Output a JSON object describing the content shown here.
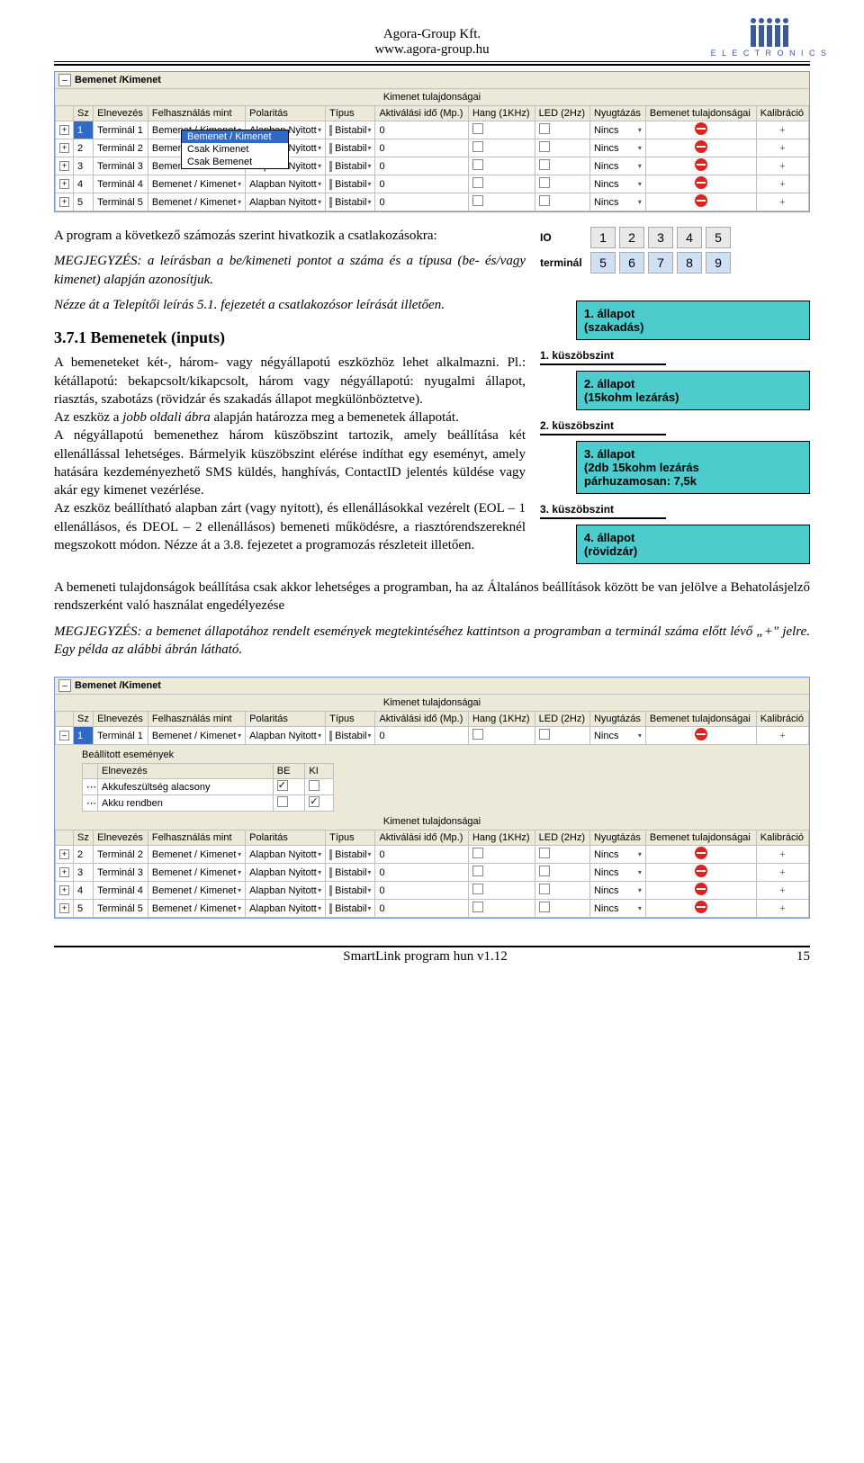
{
  "header": {
    "company": "Agora-Group Kft.",
    "url": "www.agora-group.hu",
    "logo_text": "E L E C T R O N I C S",
    "logo_color": "#3a5a9a"
  },
  "window1": {
    "title": "Bemenet /Kimenet",
    "caption": "Kimenet tulajdonságai",
    "columns": [
      "Sz",
      "Elnevezés",
      "Felhasználás mint",
      "Polaritás",
      "Típus",
      "Aktiválási idő (Mp.)",
      "Hang (1KHz)",
      "LED (2Hz)",
      "Nyugtázás",
      "Bemenet tulajdonságai",
      "Kalibráció"
    ],
    "rows": [
      {
        "tree": "+",
        "sz": "1",
        "nev": "Terminál 1",
        "felh": "Bemenet / Kimenet",
        "pol": "Alapban Nyitott",
        "tip": "Bistabil",
        "akt": "0",
        "nyug": "Nincs",
        "sel": true
      },
      {
        "tree": "+",
        "sz": "2",
        "nev": "Terminál 2",
        "felh": "Bemenet / Kimenet",
        "pol": "Alapban Nyitott",
        "tip": "Bistabil",
        "akt": "0",
        "nyug": "Nincs"
      },
      {
        "tree": "+",
        "sz": "3",
        "nev": "Terminál 3",
        "felh": "Bemenet / Kimenet",
        "pol": "Alapban Nyitott",
        "tip": "Bistabil",
        "akt": "0",
        "nyug": "Nincs"
      },
      {
        "tree": "+",
        "sz": "4",
        "nev": "Terminál 4",
        "felh": "Bemenet / Kimenet",
        "pol": "Alapban Nyitott",
        "tip": "Bistabil",
        "akt": "0",
        "nyug": "Nincs"
      },
      {
        "tree": "+",
        "sz": "5",
        "nev": "Terminál 5",
        "felh": "Bemenet / Kimenet",
        "pol": "Alapban Nyitott",
        "tip": "Bistabil",
        "akt": "0",
        "nyug": "Nincs"
      }
    ],
    "combo": [
      "Bemenet / Kimenet",
      "Csak Kimenet",
      "Csak Bemenet"
    ]
  },
  "body": {
    "p1": "A program a következő számozás szerint hivatkozik a csatlakozásokra:",
    "note1_label": "MEGJEGYZÉS:",
    "note1": " a leírásban a be/kimeneti pontot a száma és a típusa (be- és/vagy kimenet) alapján azonosítjuk.",
    "p2": "Nézze át a Telepítői leírás 5.1. fejezetét a csatlakozósor leírását illetően.",
    "h": "3.7.1 Bemenetek (inputs)",
    "p3": "A bemeneteket két-, három- vagy négyállapotú eszközhöz lehet alkalmazni. Pl.: kétállapotú: bekapcsolt/kikapcsolt, három vagy négyállapotú: nyugalmi állapot, riasztás, szabotázs (rövidzár és szakadás állapot megkülönböztetve).",
    "p4a": "Az eszköz a ",
    "p4b": "jobb oldali ábra",
    "p4c": " alapján határozza meg a bemenetek állapotát.",
    "p5": "A négyállapotú bemenethez három küszöbszint tartozik, amely beállítása két ellenállással lehetséges. Bármelyik küszöbszint elérése indíthat egy eseményt, amely hatására kezdeményezhető SMS küldés, hanghívás, ContactID jelentés küldése vagy akár egy kimenet vezérlése.",
    "p6": "Az eszköz beállítható alapban zárt (vagy nyitott), és ellenállásokkal vezérelt (EOL – 1 ellenállásos, és DEOL – 2 ellenállásos) bemeneti működésre, a riasztórendszereknél megszokott módon. Nézze át a 3.8. fejezetet a programozás részleteit illetően.",
    "p7": "A bemeneti tulajdonságok beállítása csak akkor lehetséges a programban, ha az Általános beállítások között be van jelölve a Behatolásjelző rendszerként való használat engedélyezése",
    "note2_label": "MEGJEGYZÉS:",
    "note2": " a bemenet állapotához rendelt események megtekintéséhez kattintson a programban a  terminál száma előtt lévő „+\" jelre. Egy példa az alábbi ábrán látható."
  },
  "io": {
    "label1": "IO",
    "label2": "terminál",
    "top": [
      "1",
      "2",
      "3",
      "4",
      "5"
    ],
    "bot": [
      "5",
      "6",
      "7",
      "8",
      "9"
    ]
  },
  "states": {
    "s1": [
      "1. állapot",
      "(szakadás)"
    ],
    "t1": "1. küszöbszint",
    "s2": [
      "2. állapot",
      "(15kohm lezárás)"
    ],
    "t2": "2. küszöbszint",
    "s3": [
      "3. állapot",
      "(2db 15kohm lezárás",
      "párhuzamosan: 7,5k"
    ],
    "t3": "3. küszöbszint",
    "s4": [
      "4. állapot",
      "(rövidzár)"
    ]
  },
  "window2": {
    "title": "Bemenet /Kimenet",
    "caption": "Kimenet tulajdonságai",
    "columns": [
      "Sz",
      "Elnevezés",
      "Felhasználás mint",
      "Polaritás",
      "Típus",
      "Aktiválási idő (Mp.)",
      "Hang (1KHz)",
      "LED (2Hz)",
      "Nyugtázás",
      "Bemenet tulajdonságai",
      "Kalibráció"
    ],
    "row1": {
      "sz": "1",
      "nev": "Terminál 1",
      "felh": "Bemenet / Kimenet",
      "pol": "Alapban Nyitott",
      "tip": "Bistabil",
      "akt": "0",
      "nyug": "Nincs"
    },
    "sub_title": "Beállított események",
    "sub_cols": [
      "Elnevezés",
      "BE",
      "KI"
    ],
    "sub_rows": [
      {
        "n": "Akkufeszültség alacsony",
        "be": true,
        "ki": false
      },
      {
        "n": "Akku rendben",
        "be": false,
        "ki": true
      }
    ],
    "caption2": "Kimenet tulajdonságai",
    "rows2": [
      {
        "sz": "2",
        "nev": "Terminál 2",
        "felh": "Bemenet / Kimenet",
        "pol": "Alapban Nyitott",
        "tip": "Bistabil",
        "akt": "0",
        "nyug": "Nincs"
      },
      {
        "sz": "3",
        "nev": "Terminál 3",
        "felh": "Bemenet / Kimenet",
        "pol": "Alapban Nyitott",
        "tip": "Bistabil",
        "akt": "0",
        "nyug": "Nincs"
      },
      {
        "sz": "4",
        "nev": "Terminál 4",
        "felh": "Bemenet / Kimenet",
        "pol": "Alapban Nyitott",
        "tip": "Bistabil",
        "akt": "0",
        "nyug": "Nincs"
      },
      {
        "sz": "5",
        "nev": "Terminál 5",
        "felh": "Bemenet / Kimenet",
        "pol": "Alapban Nyitott",
        "tip": "Bistabil",
        "akt": "0",
        "nyug": "Nincs"
      }
    ]
  },
  "footer": {
    "title": "SmartLink program hun v1.12",
    "page": "15"
  }
}
